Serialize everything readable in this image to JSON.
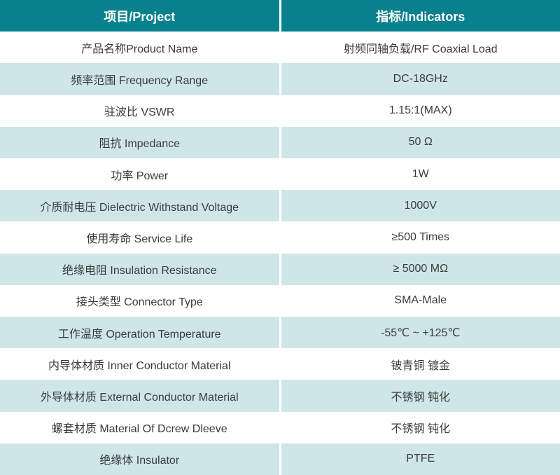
{
  "table": {
    "header": {
      "project": "项目/Project",
      "indicators": "指标/Indicators"
    },
    "rows": [
      {
        "project": "产品名称Product Name",
        "indicator": "射频同轴负载/RF Coaxial Load"
      },
      {
        "project": "频率范围 Frequency Range",
        "indicator": "DC-18GHz"
      },
      {
        "project": "驻波比 VSWR",
        "indicator": "1.15:1(MAX)"
      },
      {
        "project": "阻抗 Impedance",
        "indicator": "50 Ω"
      },
      {
        "project": "功率 Power",
        "indicator": "1W"
      },
      {
        "project": "介质耐电压 Dielectric Withstand Voltage",
        "indicator": "1000V"
      },
      {
        "project": "使用寿命 Service Life",
        "indicator": "≥500 Times"
      },
      {
        "project": "绝缘电阻 Insulation Resistance",
        "indicator": "≥ 5000 MΩ"
      },
      {
        "project": "接头类型 Connector Type",
        "indicator": "SMA-Male"
      },
      {
        "project": "工作温度 Operation Temperature",
        "indicator": "-55℃ ~ +125℃"
      },
      {
        "project": "内导体材质 Inner Conductor Material",
        "indicator": "铍青铜 镀金"
      },
      {
        "project": "外导体材质 External Conductor Material",
        "indicator": "不锈钢 钝化"
      },
      {
        "project": "螺套材质 Material Of Dcrew Dleeve",
        "indicator": "不锈钢 钝化"
      },
      {
        "project": "绝缘体 Insulator",
        "indicator": "PTFE"
      }
    ],
    "colors": {
      "header_bg": "#08818F",
      "header_text": "#FFFFFF",
      "row_bg": "#FFFFFF",
      "row_alt_bg": "#CFE6E9",
      "body_text": "#3B3B3B",
      "divider": "#FFFFFF"
    }
  }
}
